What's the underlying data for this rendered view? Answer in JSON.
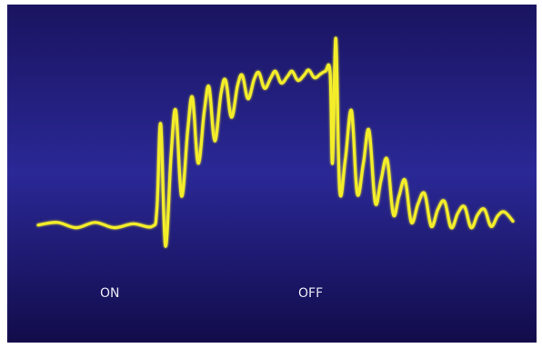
{
  "chart_data": {
    "type": "line",
    "colors": {
      "background_top": "#1a1460",
      "background_mid": "#2a2896",
      "background_bottom": "#120c4a",
      "trace": "#f4ee2c"
    },
    "grid": false,
    "legend": "none",
    "annotations": [
      {
        "text": "ON",
        "at": "stimulus-on"
      },
      {
        "text": "OFF",
        "at": "stimulus-off"
      }
    ],
    "series": [
      {
        "values": [
          [
            0,
            0.08
          ],
          [
            4,
            0.1
          ],
          [
            8,
            0.06
          ],
          [
            12,
            0.1
          ],
          [
            16,
            0.06
          ],
          [
            20,
            0.09
          ],
          [
            24,
            0.07
          ],
          [
            25,
            0.2
          ],
          [
            25.8,
            0.85
          ],
          [
            26.8,
            -0.08
          ],
          [
            28,
            0.62
          ],
          [
            29,
            0.95
          ],
          [
            30.2,
            0.3
          ],
          [
            31.5,
            0.8
          ],
          [
            32.5,
            1.05
          ],
          [
            33.7,
            0.55
          ],
          [
            35,
            0.95
          ],
          [
            36,
            1.13
          ],
          [
            37.2,
            0.72
          ],
          [
            38.5,
            1.08
          ],
          [
            39.5,
            1.18
          ],
          [
            40.7,
            0.9
          ],
          [
            42,
            1.14
          ],
          [
            43,
            1.22
          ],
          [
            44.2,
            1.04
          ],
          [
            45.5,
            1.19
          ],
          [
            46.5,
            1.24
          ],
          [
            47.7,
            1.12
          ],
          [
            49,
            1.2
          ],
          [
            50,
            1.25
          ],
          [
            51.2,
            1.16
          ],
          [
            52.5,
            1.21
          ],
          [
            53.5,
            1.25
          ],
          [
            54.7,
            1.18
          ],
          [
            56,
            1.22
          ],
          [
            57,
            1.26
          ],
          [
            58.2,
            1.2
          ],
          [
            59.5,
            1.23
          ],
          [
            60.5,
            1.25
          ],
          [
            61.5,
            1.24
          ],
          [
            62,
            0.55
          ],
          [
            62.7,
            1.5
          ],
          [
            63.5,
            0.35
          ],
          [
            64.7,
            0.58
          ],
          [
            66,
            0.95
          ],
          [
            67.2,
            0.32
          ],
          [
            68.5,
            0.55
          ],
          [
            69.7,
            0.8
          ],
          [
            71,
            0.25
          ],
          [
            72.2,
            0.42
          ],
          [
            73.5,
            0.58
          ],
          [
            74.8,
            0.16
          ],
          [
            76,
            0.3
          ],
          [
            77.3,
            0.42
          ],
          [
            78.6,
            0.1
          ],
          [
            80,
            0.24
          ],
          [
            81.4,
            0.32
          ],
          [
            82.8,
            0.07
          ],
          [
            84.2,
            0.2
          ],
          [
            85.6,
            0.26
          ],
          [
            87,
            0.06
          ],
          [
            88.4,
            0.17
          ],
          [
            89.8,
            0.22
          ],
          [
            91.2,
            0.06
          ],
          [
            92.6,
            0.16
          ],
          [
            94,
            0.2
          ],
          [
            95.4,
            0.07
          ],
          [
            96.8,
            0.15
          ],
          [
            98.2,
            0.18
          ],
          [
            100,
            0.11
          ]
        ]
      }
    ],
    "xlim": [
      0,
      100
    ],
    "ylim": [
      -0.15,
      1.55
    ],
    "on_x": 25.5,
    "off_x": 61.8
  }
}
